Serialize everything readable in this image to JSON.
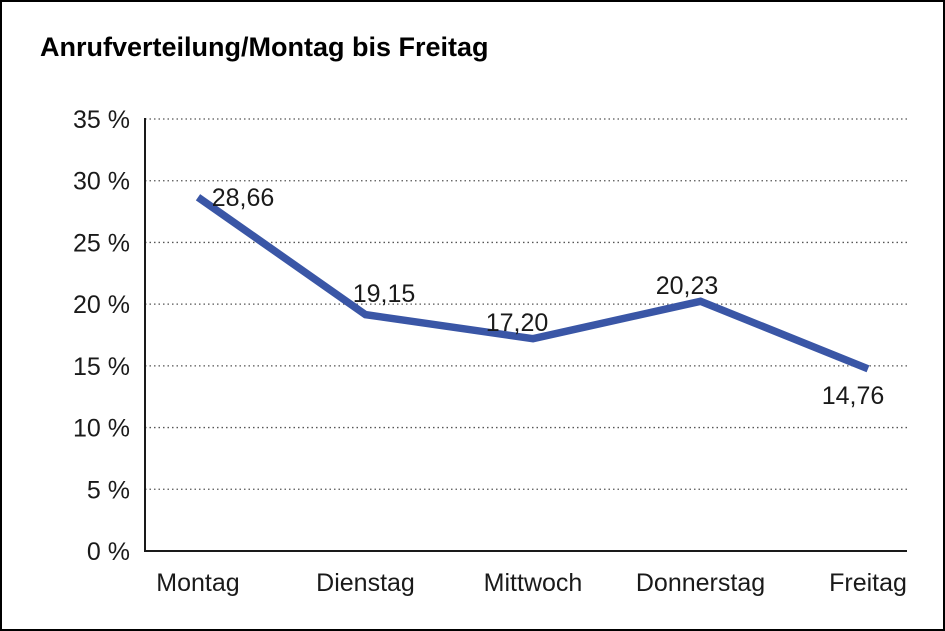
{
  "window": {
    "background_color": "#ffffff",
    "frame_border_color": "#000000"
  },
  "chart_data": {
    "type": "line",
    "title": "Anrufverteilung/Montag bis Freitag",
    "categories": [
      "Montag",
      "Dienstag",
      "Mittwoch",
      "Donnerstag",
      "Freitag"
    ],
    "series": [
      {
        "name": "Anrufverteilung",
        "values": [
          28.66,
          19.15,
          17.2,
          20.23,
          14.76
        ]
      }
    ],
    "data_labels": [
      "28,66",
      "19,15",
      "17,20",
      "20,23",
      "14,76"
    ],
    "y_tick_labels": [
      "0 %",
      "5 %",
      "10 %",
      "15 %",
      "20 %",
      "25 %",
      "30 %",
      "35 %"
    ],
    "ylim": [
      0,
      35
    ],
    "y_step": 5,
    "xlabel": "",
    "ylabel": "",
    "grid": "horizontal-dotted",
    "legend": "none",
    "line_color": "#3A56A6",
    "axis_color": "#1a1a1a",
    "gridline_color": "#555555"
  }
}
